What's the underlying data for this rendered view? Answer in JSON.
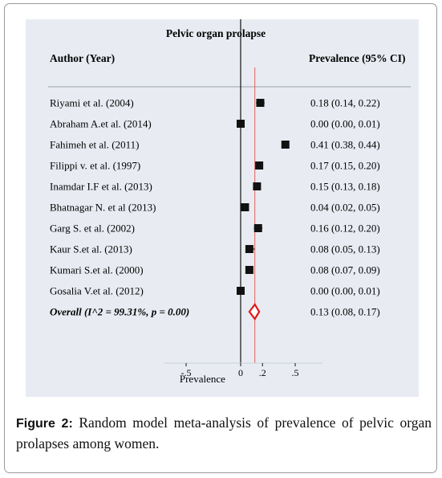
{
  "chart_data": {
    "type": "forest",
    "title": "Pelvic organ prolapse",
    "header_left": "Author (Year)",
    "header_right": "Prevalence (95% CI)",
    "xlabel": "Prevalence",
    "xlim": [
      -0.7,
      0.75
    ],
    "reference_line": 0.13,
    "ticks": [
      {
        "value": -0.5,
        "label": "-.5"
      },
      {
        "value": 0,
        "label": "0"
      },
      {
        "value": 0.2,
        "label": ".2"
      },
      {
        "value": 0.5,
        "label": ".5"
      }
    ],
    "studies": [
      {
        "label": "Riyami et al. (2004)",
        "est": 0.18,
        "lo": 0.14,
        "hi": 0.22,
        "ci_text": "0.18 (0.14, 0.22)"
      },
      {
        "label": "Abraham A.et al. (2014)",
        "est": 0.0,
        "lo": 0.0,
        "hi": 0.01,
        "ci_text": "0.00 (0.00, 0.01)"
      },
      {
        "label": "Fahimeh et al. (2011)",
        "est": 0.41,
        "lo": 0.38,
        "hi": 0.44,
        "ci_text": "0.41 (0.38, 0.44)"
      },
      {
        "label": "Filippi v. et al. (1997)",
        "est": 0.17,
        "lo": 0.15,
        "hi": 0.2,
        "ci_text": "0.17 (0.15, 0.20)"
      },
      {
        "label": "Inamdar I.F et al. (2013)",
        "est": 0.15,
        "lo": 0.13,
        "hi": 0.18,
        "ci_text": "0.15 (0.13, 0.18)"
      },
      {
        "label": "Bhatnagar N. et al (2013)",
        "est": 0.04,
        "lo": 0.02,
        "hi": 0.05,
        "ci_text": "0.04 (0.02, 0.05)"
      },
      {
        "label": "Garg S. et al.  (2002)",
        "est": 0.16,
        "lo": 0.12,
        "hi": 0.2,
        "ci_text": "0.16 (0.12, 0.20)"
      },
      {
        "label": "Kaur S.et al. (2013)",
        "est": 0.08,
        "lo": 0.05,
        "hi": 0.13,
        "ci_text": "0.08 (0.05, 0.13)"
      },
      {
        "label": "Kumari S.et al. (2000)",
        "est": 0.08,
        "lo": 0.07,
        "hi": 0.09,
        "ci_text": "0.08 (0.07, 0.09)"
      },
      {
        "label": "Gosalia V.et al. (2012)",
        "est": 0.0,
        "lo": 0.0,
        "hi": 0.01,
        "ci_text": "0.00 (0.00, 0.01)"
      }
    ],
    "overall": {
      "label": "Overall (I^2 = 99.31%, p = 0.00)",
      "est": 0.13,
      "lo": 0.08,
      "hi": 0.17,
      "ci_text": "0.13 (0.08, 0.17)"
    },
    "colors": {
      "marker": "#111111",
      "axis": "#111111",
      "reference": "#e0605a",
      "diamond": "#e01818",
      "panel_bg": "#e8ecf2"
    }
  },
  "caption": {
    "label": "Figure 2:",
    "text": " Random model meta-analysis of prevalence of pelvic organ prolapses among women."
  }
}
